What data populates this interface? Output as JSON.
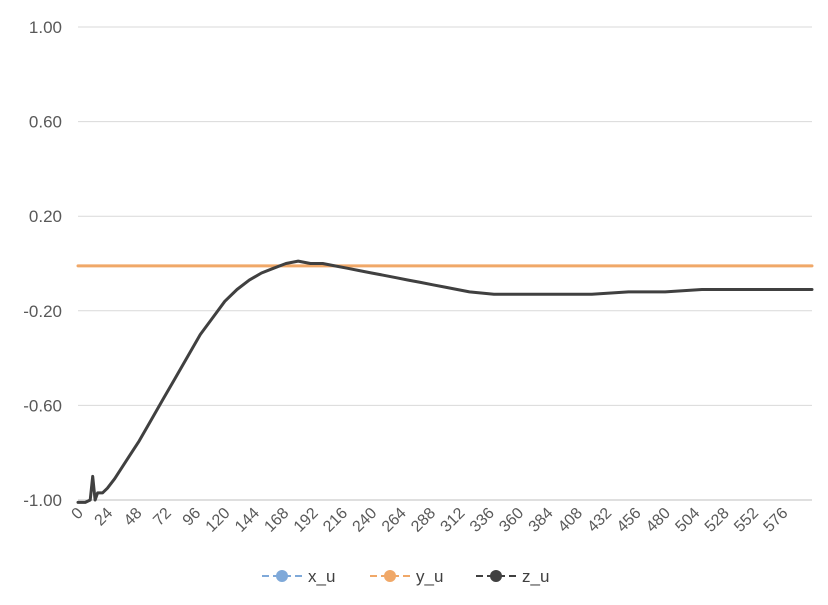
{
  "chart_data": {
    "type": "line",
    "title": "",
    "xlabel": "",
    "ylabel": "",
    "xlim": [
      0,
      600
    ],
    "ylim": [
      -1.0,
      1.0
    ],
    "grid": true,
    "legend_position": "bottom",
    "y_ticks": [
      "1.00",
      "0.60",
      "0.20",
      "-0.20",
      "-0.60",
      "-1.00"
    ],
    "y_tick_values": [
      1.0,
      0.6,
      0.2,
      -0.2,
      -0.6,
      -1.0
    ],
    "x_ticks": [
      "0",
      "24",
      "48",
      "72",
      "96",
      "120",
      "144",
      "168",
      "192",
      "216",
      "240",
      "264",
      "288",
      "312",
      "336",
      "360",
      "384",
      "408",
      "432",
      "456",
      "480",
      "504",
      "528",
      "552",
      "576"
    ],
    "x_tick_values": [
      0,
      24,
      48,
      72,
      96,
      120,
      144,
      168,
      192,
      216,
      240,
      264,
      288,
      312,
      336,
      360,
      384,
      408,
      432,
      456,
      480,
      504,
      528,
      552,
      576
    ],
    "series": [
      {
        "name": "x_u",
        "color": "#7fa9d9",
        "x": [
          0,
          100,
          200,
          300,
          400,
          500,
          600
        ],
        "values": [
          -0.01,
          -0.01,
          -0.01,
          -0.01,
          -0.01,
          -0.01,
          -0.01
        ]
      },
      {
        "name": "y_u",
        "color": "#f0a868",
        "x": [
          0,
          100,
          200,
          300,
          400,
          500,
          600
        ],
        "values": [
          -0.01,
          -0.01,
          -0.01,
          -0.01,
          -0.01,
          -0.01,
          -0.01
        ]
      },
      {
        "name": "z_u",
        "color": "#404040",
        "x": [
          0,
          6,
          10,
          12,
          14,
          16,
          20,
          24,
          30,
          40,
          50,
          60,
          70,
          80,
          90,
          100,
          110,
          120,
          130,
          140,
          150,
          160,
          170,
          180,
          190,
          200,
          210,
          220,
          230,
          240,
          250,
          260,
          270,
          280,
          290,
          300,
          310,
          320,
          340,
          360,
          380,
          400,
          420,
          450,
          480,
          510,
          540,
          570,
          600
        ],
        "values": [
          -1.01,
          -1.01,
          -1.0,
          -0.9,
          -1.0,
          -0.97,
          -0.97,
          -0.95,
          -0.91,
          -0.83,
          -0.75,
          -0.66,
          -0.57,
          -0.48,
          -0.39,
          -0.3,
          -0.23,
          -0.16,
          -0.11,
          -0.07,
          -0.04,
          -0.02,
          0.0,
          0.01,
          0.0,
          0.0,
          -0.01,
          -0.02,
          -0.03,
          -0.04,
          -0.05,
          -0.06,
          -0.07,
          -0.08,
          -0.09,
          -0.1,
          -0.11,
          -0.12,
          -0.13,
          -0.13,
          -0.13,
          -0.13,
          -0.13,
          -0.12,
          -0.12,
          -0.11,
          -0.11,
          -0.11,
          -0.11
        ]
      }
    ]
  }
}
